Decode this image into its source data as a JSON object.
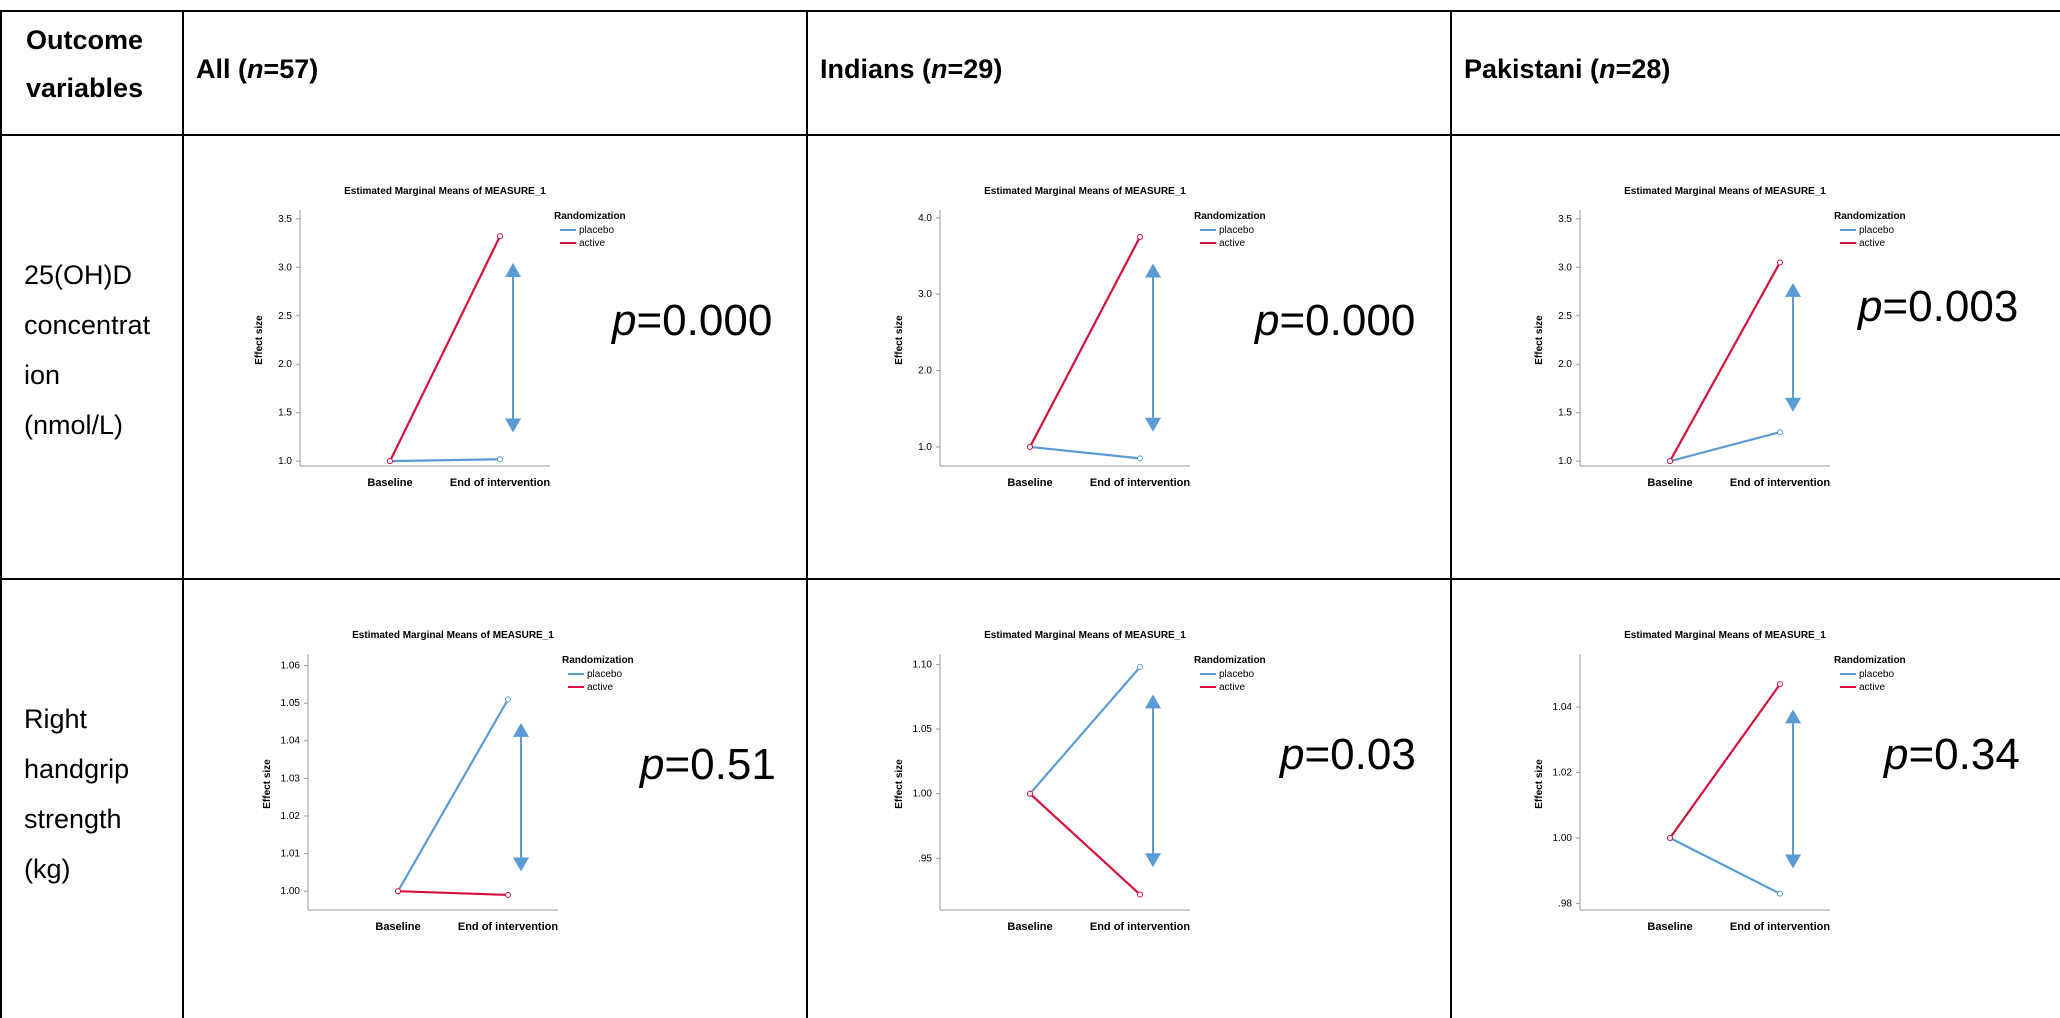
{
  "table": {
    "header": {
      "outcome": "Outcome variables",
      "groups": [
        {
          "label": "All (",
          "n": "n",
          "count": "=57)"
        },
        {
          "label": "Indians (",
          "n": "n",
          "count": "=29)"
        },
        {
          "label": "Pakistani (",
          "n": "n",
          "count": "=28)"
        }
      ]
    },
    "rows": [
      {
        "label_lines": [
          "25(OH)D",
          "concentrat",
          "ion",
          "(nmol/L)"
        ]
      },
      {
        "label_lines": [
          "Right",
          "handgrip",
          "strength",
          "(kg)"
        ]
      }
    ]
  },
  "colors": {
    "placebo": "#5b9bd5",
    "active": "#d6103c",
    "arrow": "#5b9bd5"
  },
  "chart_data": [
    {
      "type": "line",
      "title": "Estimated Marginal Means of MEASURE_1",
      "ylabel": "Effect size",
      "legend_title": "Randomization",
      "categories": [
        "Baseline",
        "End of intervention"
      ],
      "series": [
        {
          "name": "placebo",
          "values": [
            1.0,
            1.02
          ]
        },
        {
          "name": "active",
          "values": [
            1.0,
            3.32
          ]
        }
      ],
      "ylim": [
        0.95,
        3.55
      ],
      "yticks": [
        "1.0",
        "1.5",
        "2.0",
        "2.5",
        "3.0",
        "3.5"
      ],
      "ytick_values": [
        1.0,
        1.5,
        2.0,
        2.5,
        3.0,
        3.5
      ],
      "p_label": "p",
      "p_value": "=0.000"
    },
    {
      "type": "line",
      "title": "Estimated Marginal Means of MEASURE_1",
      "ylabel": "Effect size",
      "legend_title": "Randomization",
      "categories": [
        "Baseline",
        "End of intervention"
      ],
      "series": [
        {
          "name": "placebo",
          "values": [
            1.0,
            0.85
          ]
        },
        {
          "name": "active",
          "values": [
            1.0,
            3.75
          ]
        }
      ],
      "ylim": [
        0.75,
        4.05
      ],
      "yticks": [
        "1.0",
        "2.0",
        "3.0",
        "4.0"
      ],
      "ytick_values": [
        1.0,
        2.0,
        3.0,
        4.0
      ],
      "p_label": "p",
      "p_value": "=0.000"
    },
    {
      "type": "line",
      "title": "Estimated Marginal Means of MEASURE_1",
      "ylabel": "Effect size",
      "legend_title": "Randomization",
      "categories": [
        "Baseline",
        "End of intervention"
      ],
      "series": [
        {
          "name": "placebo",
          "values": [
            1.0,
            1.3
          ]
        },
        {
          "name": "active",
          "values": [
            1.0,
            3.05
          ]
        }
      ],
      "ylim": [
        0.95,
        3.55
      ],
      "yticks": [
        "1.0",
        "1.5",
        "2.0",
        "2.5",
        "3.0",
        "3.5"
      ],
      "ytick_values": [
        1.0,
        1.5,
        2.0,
        2.5,
        3.0,
        3.5
      ],
      "p_label": "p",
      "p_value": "=0.003"
    },
    {
      "type": "line",
      "title": "Estimated Marginal Means of MEASURE_1",
      "ylabel": "Effect size",
      "legend_title": "Randomization",
      "categories": [
        "Baseline",
        "End of intervention"
      ],
      "series": [
        {
          "name": "placebo",
          "values": [
            1.0,
            1.051
          ]
        },
        {
          "name": "active",
          "values": [
            1.0,
            0.999
          ]
        }
      ],
      "ylim": [
        0.995,
        1.062
      ],
      "yticks": [
        "1.00",
        "1.01",
        "1.02",
        "1.03",
        "1.04",
        "1.05",
        "1.06"
      ],
      "ytick_values": [
        1.0,
        1.01,
        1.02,
        1.03,
        1.04,
        1.05,
        1.06
      ],
      "p_label": "p",
      "p_value": "=0.51"
    },
    {
      "type": "line",
      "title": "Estimated Marginal Means of MEASURE_1",
      "ylabel": "Effect size",
      "legend_title": "Randomization",
      "categories": [
        "Baseline",
        "End of intervention"
      ],
      "series": [
        {
          "name": "placebo",
          "values": [
            1.0,
            1.098
          ]
        },
        {
          "name": "active",
          "values": [
            1.0,
            0.922
          ]
        }
      ],
      "ylim": [
        0.91,
        1.105
      ],
      "yticks": [
        ".95",
        "1.00",
        "1.05",
        "1.10"
      ],
      "ytick_values": [
        0.95,
        1.0,
        1.05,
        1.1
      ],
      "p_label": "p",
      "p_value": "=0.03"
    },
    {
      "type": "line",
      "title": "Estimated Marginal Means of MEASURE_1",
      "ylabel": "Effect size",
      "legend_title": "Randomization",
      "categories": [
        "Baseline",
        "End of intervention"
      ],
      "series": [
        {
          "name": "placebo",
          "values": [
            1.0,
            0.983
          ]
        },
        {
          "name": "active",
          "values": [
            1.0,
            1.047
          ]
        }
      ],
      "ylim": [
        0.978,
        1.055
      ],
      "yticks": [
        ".98",
        "1.00",
        "1.02",
        "1.04"
      ],
      "ytick_values": [
        0.98,
        1.0,
        1.02,
        1.04
      ],
      "p_label": "p",
      "p_value": "=0.34"
    }
  ]
}
